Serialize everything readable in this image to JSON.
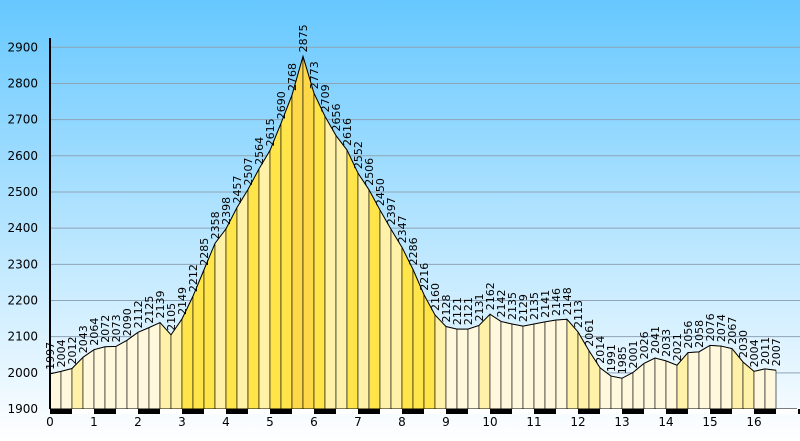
{
  "chart_data": {
    "type": "area",
    "ylim": [
      1900,
      2920
    ],
    "xlim": [
      0,
      17.2
    ],
    "y_ticks": [
      1900,
      2000,
      2100,
      2200,
      2300,
      2400,
      2500,
      2600,
      2700,
      2800,
      2900
    ],
    "x_ticks": [
      0,
      1,
      2,
      3,
      4,
      5,
      6,
      7,
      8,
      9,
      10,
      11,
      12,
      13,
      14,
      15,
      16
    ],
    "grid": true,
    "colors": {
      "background_top": "#66c8ff",
      "background_bottom": "#ffffff",
      "gridline": "#8fa4b6",
      "outline": "#000000",
      "band_dark": "#000000",
      "band_light": "#ffffff",
      "gradient_scale": [
        "#fff8dc",
        "#fff2a8",
        "#ffe54a",
        "#ffd84a",
        "#ffc84a",
        "#ffb050",
        "#f9a080",
        "#ff7a18",
        "#ff5a00",
        "#6b0000"
      ]
    },
    "profile": [
      {
        "x": 0.0,
        "y": 1997
      },
      {
        "x": 0.25,
        "y": 2004
      },
      {
        "x": 0.5,
        "y": 2012
      },
      {
        "x": 0.75,
        "y": 2043
      },
      {
        "x": 1.0,
        "y": 2064
      },
      {
        "x": 1.25,
        "y": 2072
      },
      {
        "x": 1.5,
        "y": 2073
      },
      {
        "x": 1.75,
        "y": 2090
      },
      {
        "x": 2.0,
        "y": 2112
      },
      {
        "x": 2.25,
        "y": 2125
      },
      {
        "x": 2.5,
        "y": 2139
      },
      {
        "x": 2.75,
        "y": 2105
      },
      {
        "x": 3.0,
        "y": 2149
      },
      {
        "x": 3.25,
        "y": 2212
      },
      {
        "x": 3.5,
        "y": 2285
      },
      {
        "x": 3.75,
        "y": 2358
      },
      {
        "x": 4.0,
        "y": 2398
      },
      {
        "x": 4.25,
        "y": 2457
      },
      {
        "x": 4.5,
        "y": 2507
      },
      {
        "x": 4.75,
        "y": 2564
      },
      {
        "x": 5.0,
        "y": 2615
      },
      {
        "x": 5.25,
        "y": 2690
      },
      {
        "x": 5.5,
        "y": 2768
      },
      {
        "x": 5.75,
        "y": 2875
      },
      {
        "x": 6.0,
        "y": 2773
      },
      {
        "x": 6.25,
        "y": 2709
      },
      {
        "x": 6.5,
        "y": 2656
      },
      {
        "x": 6.75,
        "y": 2616
      },
      {
        "x": 7.0,
        "y": 2552
      },
      {
        "x": 7.25,
        "y": 2506
      },
      {
        "x": 7.5,
        "y": 2450
      },
      {
        "x": 7.75,
        "y": 2397
      },
      {
        "x": 8.0,
        "y": 2347
      },
      {
        "x": 8.25,
        "y": 2286
      },
      {
        "x": 8.5,
        "y": 2216
      },
      {
        "x": 8.75,
        "y": 2160
      },
      {
        "x": 9.0,
        "y": 2128
      },
      {
        "x": 9.25,
        "y": 2121
      },
      {
        "x": 9.5,
        "y": 2121
      },
      {
        "x": 9.75,
        "y": 2131
      },
      {
        "x": 10.0,
        "y": 2162
      },
      {
        "x": 10.25,
        "y": 2142
      },
      {
        "x": 10.5,
        "y": 2135
      },
      {
        "x": 10.75,
        "y": 2129
      },
      {
        "x": 11.0,
        "y": 2135
      },
      {
        "x": 11.25,
        "y": 2141
      },
      {
        "x": 11.5,
        "y": 2146
      },
      {
        "x": 11.75,
        "y": 2148
      },
      {
        "x": 12.0,
        "y": 2113
      },
      {
        "x": 12.25,
        "y": 2061
      },
      {
        "x": 12.5,
        "y": 2014
      },
      {
        "x": 12.75,
        "y": 1991
      },
      {
        "x": 13.0,
        "y": 1985
      },
      {
        "x": 13.25,
        "y": 2001
      },
      {
        "x": 13.5,
        "y": 2026
      },
      {
        "x": 13.75,
        "y": 2041
      },
      {
        "x": 14.0,
        "y": 2033
      },
      {
        "x": 14.25,
        "y": 2021
      },
      {
        "x": 14.5,
        "y": 2056
      },
      {
        "x": 14.75,
        "y": 2058
      },
      {
        "x": 15.0,
        "y": 2076
      },
      {
        "x": 15.25,
        "y": 2074
      },
      {
        "x": 15.5,
        "y": 2067
      },
      {
        "x": 15.75,
        "y": 2030
      },
      {
        "x": 16.0,
        "y": 2004
      },
      {
        "x": 16.25,
        "y": 2011
      },
      {
        "x": 16.5,
        "y": 2007
      }
    ]
  }
}
